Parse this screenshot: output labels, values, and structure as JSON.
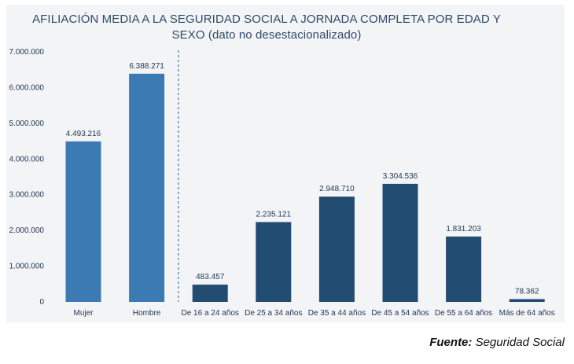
{
  "chart_data": {
    "type": "bar",
    "title_line1": "AFILIACIÓN MEDIA A LA SEGURIDAD SOCIAL A JORNADA COMPLETA POR EDAD Y",
    "title_line2": "SEXO (dato no desestacionalizado)",
    "ylim": [
      0,
      7000000
    ],
    "y_ticks": [
      0,
      1000000,
      2000000,
      3000000,
      4000000,
      5000000,
      6000000,
      7000000
    ],
    "y_tick_labels": [
      "0",
      "1.000.000",
      "2.000.000",
      "3.000.000",
      "4.000.000",
      "5.000.000",
      "6.000.000",
      "7.000.000"
    ],
    "grid": false,
    "categories": [
      "Mujer",
      "Hombre",
      "De 16 a 24 años",
      "De 25 a 34 años",
      "De 35 a 44 años",
      "De 45 a 54 años",
      "De 55 a 64 años",
      "Más de 64 años"
    ],
    "values": [
      4493216,
      6388271,
      483457,
      2235121,
      2948710,
      3304536,
      1831203,
      78362
    ],
    "value_labels": [
      "4.493.216",
      "6.388.271",
      "483.457",
      "2.235.121",
      "2.948.710",
      "3.304.536",
      "1.831.203",
      "78.362"
    ],
    "groups": [
      "sexo",
      "sexo",
      "edad",
      "edad",
      "edad",
      "edad",
      "edad",
      "edad"
    ],
    "colors": {
      "sexo": "#3c7ab4",
      "edad": "#234c72",
      "separator": "#2e5f8f"
    }
  },
  "source": {
    "label": "Fuente:",
    "text": "Seguridad Social"
  }
}
